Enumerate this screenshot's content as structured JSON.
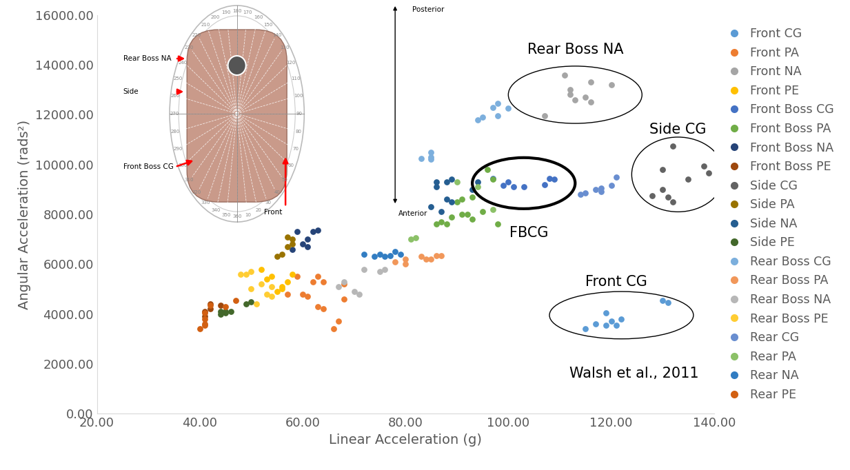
{
  "chart_data": {
    "type": "scatter",
    "x_label": "Linear Acceleration (g)",
    "y_label": "Angular Acceleration (rads²)",
    "xlim": [
      20,
      140
    ],
    "xticks": [
      {
        "value": 20,
        "label": "20.00"
      },
      {
        "value": 40,
        "label": "40.00"
      },
      {
        "value": 60,
        "label": "60.00"
      },
      {
        "value": 80,
        "label": "80.00"
      },
      {
        "value": 100,
        "label": "100.00"
      },
      {
        "value": 120,
        "label": "120.00"
      },
      {
        "value": 140,
        "label": "140.00"
      }
    ],
    "ylim": [
      0,
      16000
    ],
    "yticks": [
      {
        "value": 0,
        "label": "0.00"
      },
      {
        "value": 2000,
        "label": "2000.00"
      },
      {
        "value": 4000,
        "label": "4000.00"
      },
      {
        "value": 6000,
        "label": "6000.00"
      },
      {
        "value": 8000,
        "label": "8000.00"
      },
      {
        "value": 10000,
        "label": "10000.00"
      },
      {
        "value": 12000,
        "label": "12000.00"
      },
      {
        "value": 14000,
        "label": "14000.00"
      },
      {
        "value": 16000,
        "label": "16000.00"
      }
    ],
    "grid": false,
    "legend": "right",
    "marker": "o",
    "annotations": [
      "Rear Boss NA",
      "Side CG",
      "FBCG",
      "Front CG",
      "Walsh et al., 2011"
    ],
    "inset": {
      "labels": [
        "Rear Boss NA",
        "Side",
        "Front Boss CG",
        "Front",
        "Posterior",
        "Anterior"
      ],
      "angles": [
        10,
        20,
        30,
        40,
        50,
        60,
        70,
        80,
        90,
        100,
        110,
        120,
        130,
        140,
        150,
        160,
        170,
        180,
        190,
        200,
        210,
        220,
        230,
        240,
        250,
        260,
        270,
        280,
        290,
        300,
        310,
        320,
        330,
        340,
        350,
        360
      ]
    },
    "series": [
      {
        "name": "Front CG",
        "color": "#5B9BD5",
        "x": [
          115,
          117,
          119,
          119,
          120,
          121,
          122,
          130,
          131
        ],
        "values": [
          3400,
          3600,
          4050,
          3550,
          3700,
          3550,
          3800,
          4550,
          4450
        ]
      },
      {
        "name": "Front PA",
        "color": "#ED7D31",
        "x": [
          57,
          59,
          60,
          61,
          62,
          63,
          63,
          64,
          64,
          66,
          67,
          68,
          68
        ],
        "values": [
          4800,
          5500,
          4800,
          4700,
          5300,
          5500,
          4300,
          5300,
          4200,
          3400,
          3700,
          4600,
          5200
        ]
      },
      {
        "name": "Front NA",
        "color": "#A5A5A5",
        "x": [
          107,
          111,
          112,
          112,
          113,
          115,
          116,
          116,
          120
        ],
        "values": [
          11950,
          13600,
          12800,
          13000,
          12600,
          12700,
          13300,
          12500,
          13200
        ]
      },
      {
        "name": "Front PE",
        "color": "#FFC000",
        "x": [
          52,
          53,
          54,
          55,
          56,
          56,
          57,
          58
        ],
        "values": [
          5800,
          5400,
          5500,
          4900,
          5100,
          5000,
          5300,
          5600
        ]
      },
      {
        "name": "Front Boss CG",
        "color": "#4472C4",
        "x": [
          97,
          99,
          100,
          101,
          103,
          107,
          108,
          109
        ],
        "values": [
          9450,
          9150,
          9300,
          9100,
          9100,
          9200,
          9450,
          9400
        ]
      },
      {
        "name": "Front Boss PA",
        "color": "#70AD47",
        "x": [
          86,
          87,
          88,
          89,
          90,
          91,
          91,
          92,
          93,
          93,
          95,
          96,
          97,
          98
        ],
        "values": [
          7600,
          7700,
          7600,
          7900,
          8500,
          8000,
          8600,
          8000,
          7800,
          8700,
          8100,
          9800,
          9400,
          7600
        ]
      },
      {
        "name": "Front Boss NA",
        "color": "#264478",
        "x": [
          58,
          59,
          60,
          61,
          61,
          62,
          63
        ],
        "values": [
          6600,
          7300,
          6800,
          6700,
          7000,
          7300,
          7350
        ]
      },
      {
        "name": "Front Boss PE",
        "color": "#9E480E",
        "x": [
          41,
          41,
          42,
          42,
          44
        ],
        "values": [
          3900,
          4100,
          4200,
          4400,
          4350
        ]
      },
      {
        "name": "Side CG",
        "color": "#636363",
        "x": [
          128,
          130,
          130,
          131,
          132,
          132,
          135,
          138,
          139
        ],
        "values": [
          8750,
          9000,
          9800,
          8700,
          10750,
          8500,
          9400,
          9950,
          9650
        ]
      },
      {
        "name": "Side PA",
        "color": "#997300",
        "x": [
          55,
          56,
          57,
          57,
          58,
          58
        ],
        "values": [
          6300,
          6400,
          6700,
          7100,
          7000,
          6800
        ]
      },
      {
        "name": "Side NA",
        "color": "#255E91",
        "x": [
          85,
          86,
          86,
          87,
          88,
          88,
          89,
          89,
          93,
          94
        ],
        "values": [
          8300,
          9100,
          9300,
          8100,
          8600,
          9300,
          9400,
          8500,
          9000,
          9300
        ]
      },
      {
        "name": "Side PE",
        "color": "#43682B",
        "x": [
          44,
          44,
          45,
          45,
          46,
          49,
          50
        ],
        "values": [
          4000,
          4100,
          4050,
          4100,
          4100,
          4400,
          4500
        ]
      },
      {
        "name": "Rear Boss CG",
        "color": "#7CAFDD",
        "x": [
          83,
          85,
          85,
          85,
          94,
          95,
          97,
          98,
          98,
          100
        ],
        "values": [
          10250,
          10300,
          10500,
          10200,
          11800,
          11900,
          12300,
          12450,
          11950,
          12250
        ]
      },
      {
        "name": "Rear Boss PA",
        "color": "#F1975A",
        "x": [
          78,
          80,
          80,
          83,
          84,
          85,
          86,
          87
        ],
        "values": [
          6100,
          6200,
          6000,
          6300,
          6200,
          6200,
          6350,
          6350
        ]
      },
      {
        "name": "Rear Boss NA",
        "color": "#B7B7B7",
        "x": [
          67,
          68,
          70,
          71,
          72,
          75,
          76
        ],
        "values": [
          5100,
          5300,
          4900,
          4800,
          5800,
          5700,
          5800
        ]
      },
      {
        "name": "Rear Boss PE",
        "color": "#FFCD33",
        "x": [
          48,
          49,
          50,
          50,
          51,
          52,
          53,
          54,
          54
        ],
        "values": [
          5600,
          5600,
          5000,
          5700,
          4400,
          5200,
          4800,
          5100,
          4700
        ]
      },
      {
        "name": "Rear CG",
        "color": "#698ED0",
        "x": [
          114,
          115,
          117,
          118,
          118,
          120,
          121
        ],
        "values": [
          8800,
          8850,
          9000,
          8900,
          9050,
          9150,
          9500
        ]
      },
      {
        "name": "Rear PA",
        "color": "#8CC168",
        "x": [
          81,
          82,
          90,
          94,
          97
        ],
        "values": [
          7000,
          7050,
          9300,
          9100,
          8200
        ]
      },
      {
        "name": "Rear NA",
        "color": "#327DC2",
        "x": [
          72,
          74,
          75,
          76,
          77,
          78,
          79
        ],
        "values": [
          6400,
          6300,
          6400,
          6300,
          6350,
          6500,
          6400
        ]
      },
      {
        "name": "Rear PE",
        "color": "#D26012",
        "x": [
          40,
          41,
          41,
          41,
          41,
          42,
          45,
          47
        ],
        "values": [
          3400,
          3550,
          3600,
          3800,
          4050,
          4350,
          4300,
          4550
        ]
      }
    ]
  }
}
